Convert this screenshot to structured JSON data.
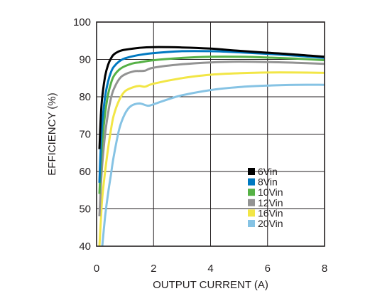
{
  "chart_data": {
    "type": "line",
    "title": "",
    "xlabel": "OUTPUT CURRENT (A)",
    "ylabel": "EFFICIENCY (%)",
    "xlim": [
      0,
      8
    ],
    "ylim": [
      40,
      100
    ],
    "xticks": [
      0,
      2,
      4,
      6,
      8
    ],
    "yticks": [
      40,
      50,
      60,
      70,
      80,
      90,
      100
    ],
    "grid": true,
    "legend_position": "bottom-right",
    "series": [
      {
        "name": "6Vin",
        "color": "#000000",
        "x": [
          0.1,
          0.15,
          0.2,
          0.3,
          0.4,
          0.5,
          0.6,
          0.8,
          1.0,
          1.5,
          2,
          3,
          4,
          5,
          6,
          7,
          8
        ],
        "y": [
          66,
          75,
          80,
          85.5,
          88.5,
          90.2,
          91.3,
          92.2,
          92.6,
          93.1,
          93.3,
          93.2,
          92.9,
          92.3,
          91.8,
          91.3,
          90.7
        ]
      },
      {
        "name": "8Vin",
        "color": "#0079c1",
        "x": [
          0.1,
          0.15,
          0.2,
          0.3,
          0.4,
          0.5,
          0.6,
          0.8,
          1.0,
          1.5,
          2,
          3,
          4,
          5,
          6,
          7,
          8
        ],
        "y": [
          57,
          67,
          73,
          80,
          84,
          86.5,
          88,
          89.5,
          90.3,
          91.2,
          91.7,
          92.2,
          92.2,
          91.9,
          91.5,
          91,
          90.4
        ]
      },
      {
        "name": "10Vin",
        "color": "#56b146",
        "x": [
          0.1,
          0.15,
          0.2,
          0.3,
          0.4,
          0.5,
          0.6,
          0.8,
          1.0,
          1.3,
          1.5,
          2,
          3,
          4,
          5,
          6,
          7,
          8
        ],
        "y": [
          54,
          62,
          68,
          75.5,
          80.5,
          83.5,
          85.5,
          87.3,
          88.2,
          89,
          89.2,
          89.8,
          90.4,
          90.7,
          90.7,
          90.5,
          90.2,
          89.8
        ]
      },
      {
        "name": "12Vin",
        "color": "#939393",
        "x": [
          0.1,
          0.15,
          0.2,
          0.3,
          0.4,
          0.5,
          0.6,
          0.8,
          1.0,
          1.3,
          1.5,
          1.7,
          2,
          3,
          4,
          5,
          6,
          7,
          8
        ],
        "y": [
          48,
          56,
          62,
          70,
          75.5,
          79.5,
          82,
          84.8,
          86,
          86.8,
          86.9,
          87,
          87.8,
          88.7,
          89.2,
          89.4,
          89.3,
          89.1,
          88.8
        ]
      },
      {
        "name": "16Vin",
        "color": "#f2e646",
        "x": [
          0.1,
          0.15,
          0.2,
          0.3,
          0.4,
          0.5,
          0.6,
          0.8,
          1.0,
          1.3,
          1.5,
          1.7,
          2,
          3,
          4,
          5,
          6,
          7,
          8
        ],
        "y": [
          40,
          47,
          53,
          60,
          66,
          71,
          75,
          79.2,
          81.5,
          82.6,
          82.9,
          82.7,
          83.5,
          85,
          85.9,
          86.3,
          86.5,
          86.5,
          86.4
        ]
      },
      {
        "name": "20Vin",
        "color": "#86c3e4",
        "x": [
          0.2,
          0.3,
          0.4,
          0.5,
          0.6,
          0.8,
          1.0,
          1.2,
          1.5,
          1.8,
          2,
          2.5,
          3,
          4,
          5,
          6,
          7,
          8
        ],
        "y": [
          40,
          48,
          54,
          59,
          64,
          71.5,
          75.5,
          77.5,
          78.2,
          77.6,
          78,
          79.3,
          80.4,
          81.8,
          82.6,
          83,
          83.2,
          83.2
        ]
      }
    ]
  }
}
